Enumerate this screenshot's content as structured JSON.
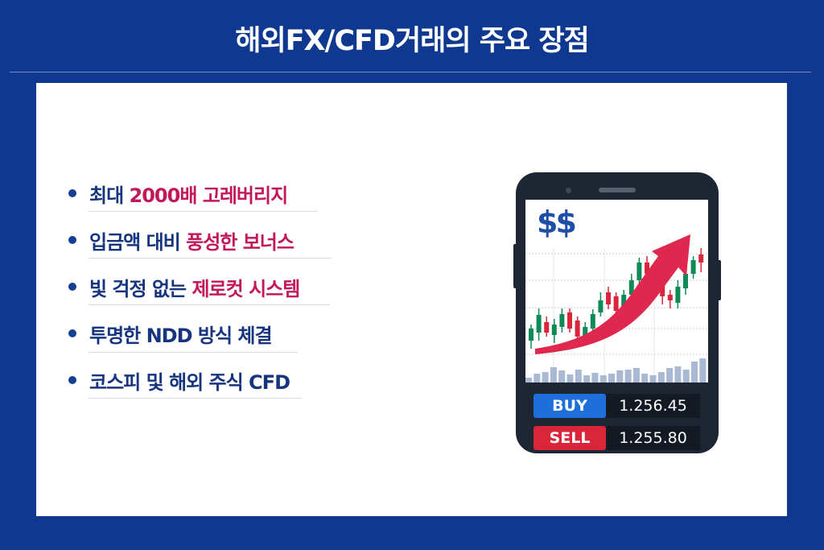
{
  "title": "해외FX/CFD거래의 주요 장점",
  "items": [
    {
      "plain": "최대 ",
      "highlight": "2000배 고레버리지"
    },
    {
      "plain": "입금액 대비 ",
      "highlight": "풍성한 보너스"
    },
    {
      "plain": "빛 걱정 없는 ",
      "highlight": "제로컷 시스템"
    },
    {
      "plain": "투명한 NDD 방식 체결",
      "highlight": ""
    },
    {
      "plain": "코스피 및 해외 주식 CFD",
      "highlight": ""
    }
  ],
  "phone": {
    "currency_symbol": "$$",
    "buy_label": "BUY",
    "buy_price": "1.256.45",
    "sell_label": "SELL",
    "sell_price": "1.255.80"
  },
  "colors": {
    "background": "#0f3990",
    "text": "#17357f",
    "highlight": "#c2185b",
    "buy": "#1e6fd9",
    "sell": "#d9263a",
    "up": "#0f8a56",
    "down": "#d9263a"
  }
}
